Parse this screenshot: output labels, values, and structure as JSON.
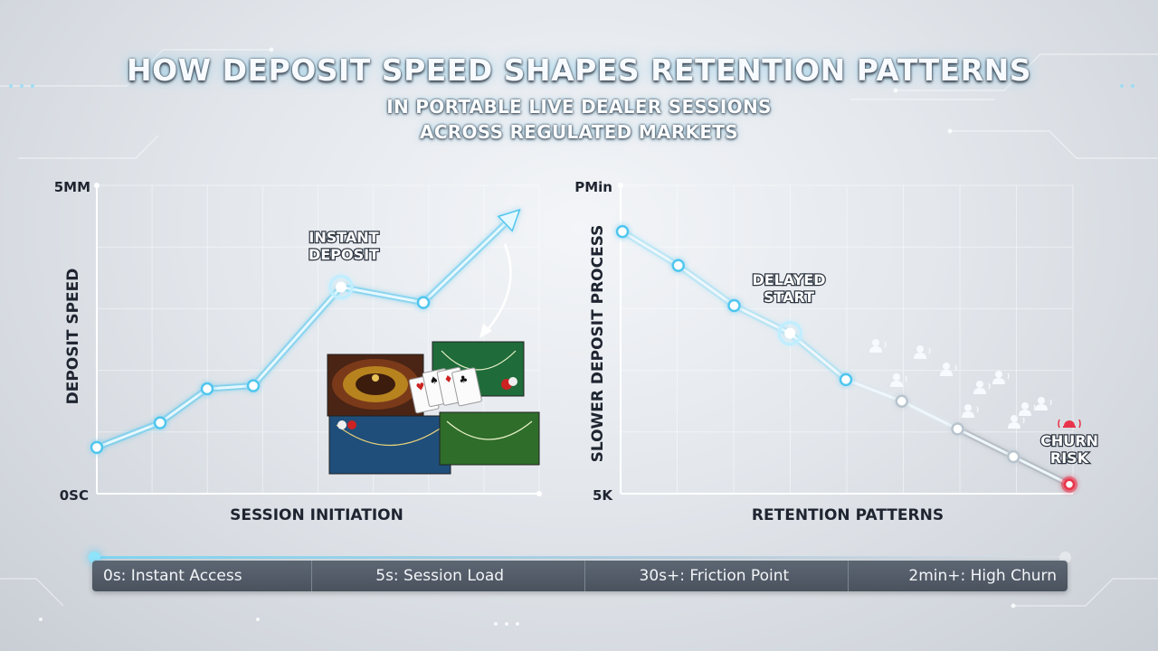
{
  "title": "HOW DEPOSIT SPEED SHAPES RETENTION PATTERNS",
  "subtitle_line1": "IN PORTABLE LIVE DEALER SESSIONS",
  "subtitle_line2": "ACROSS REGULATED MARKETS",
  "chart_data": [
    {
      "type": "line",
      "ylabel": "DEPOSIT SPEED",
      "xlabel": "SESSION INITIATION",
      "y_top_label": "5MM",
      "y_bottom_label": "0SC",
      "ylim": [
        0,
        100
      ],
      "grid": true,
      "trend": "rising",
      "series": [
        {
          "values": [
            15,
            23,
            34,
            35,
            67,
            62,
            88
          ]
        }
      ],
      "annotations": [
        {
          "text": "INSTANT",
          "point_index": 4
        },
        {
          "text": "DEPOSIT",
          "point_index": 4
        }
      ],
      "colors": {
        "line": "#7dd8f2",
        "glow": "#4fc6ee"
      },
      "inset_image": "live-dealer-tables-icon"
    },
    {
      "type": "line",
      "ylabel": "SLOWER DEPOSIT PROCESS",
      "xlabel": "RETENTION PATTERNS",
      "y_top_label": "PMin",
      "y_bottom_label": "5K",
      "ylim": [
        0,
        100
      ],
      "grid": true,
      "trend": "falling",
      "series": [
        {
          "values": [
            85,
            74,
            61,
            52,
            37,
            30,
            21,
            12,
            3
          ]
        }
      ],
      "annotations": [
        {
          "text": "DELAYED",
          "point_index": 3
        },
        {
          "text": "START",
          "point_index": 3
        },
        {
          "text": "CHURN",
          "point_index": 8
        },
        {
          "text": "RISK",
          "point_index": 8
        }
      ],
      "colors": {
        "line": "#c3e6f2",
        "end": "#e8344a"
      },
      "decor_icons": "user-leaving-icon"
    }
  ],
  "timeline": {
    "items": [
      "0s: Instant Access",
      "5s: Session Load",
      "30s+: Friction Point",
      "2min+: High Churn"
    ]
  }
}
